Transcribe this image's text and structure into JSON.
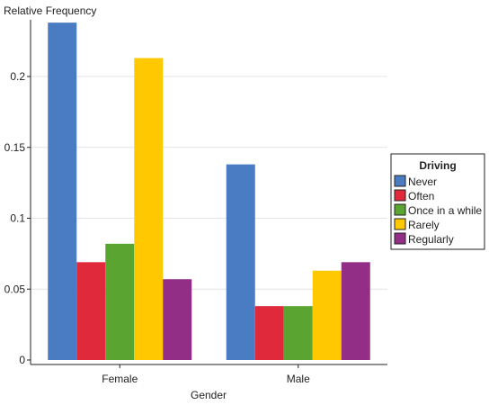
{
  "chart_data": {
    "type": "bar",
    "ylabel": "Relative Frequency",
    "xlabel": "Gender",
    "categories": [
      "Female",
      "Male"
    ],
    "ylim": [
      0,
      0.24
    ],
    "yticks": [
      0,
      0.05,
      0.1,
      0.15,
      0.2
    ],
    "ytick_labels": [
      "0",
      "0.05",
      "0.1",
      "0.15",
      "0.2"
    ],
    "grid": "horizontal",
    "legend": {
      "title": "Driving",
      "placement": "right"
    },
    "series": [
      {
        "name": "Never",
        "color": "#4a7cc4",
        "values": [
          0.238,
          0.138
        ]
      },
      {
        "name": "Often",
        "color": "#e02a3c",
        "values": [
          0.069,
          0.038
        ]
      },
      {
        "name": "Once in a while",
        "color": "#5aa532",
        "values": [
          0.082,
          0.038
        ]
      },
      {
        "name": "Rarely",
        "color": "#ffc800",
        "values": [
          0.213,
          0.063
        ]
      },
      {
        "name": "Regularly",
        "color": "#922e86",
        "values": [
          0.057,
          0.069
        ]
      }
    ]
  }
}
